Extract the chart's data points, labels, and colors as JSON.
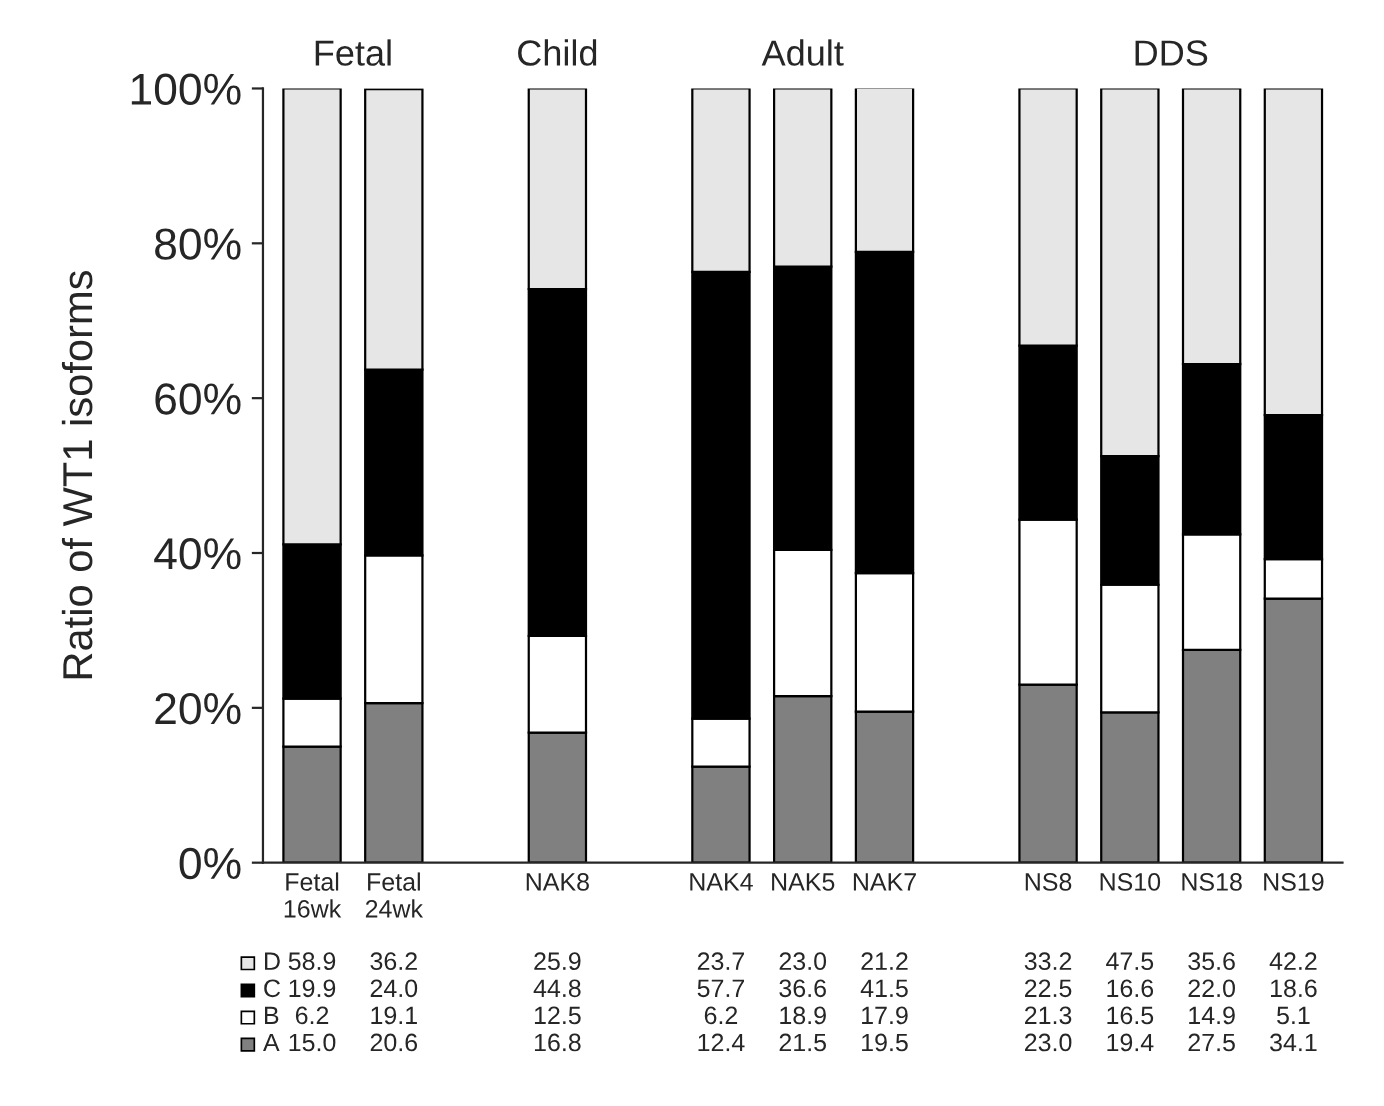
{
  "chart_data": {
    "type": "bar",
    "stacked": true,
    "ylabel": "Ratio of WT1 isoforms",
    "categories": [
      "Fetal\n16wk",
      "Fetal\n24wk",
      null,
      "NAK8",
      null,
      "NAK4",
      "NAK5",
      "NAK7",
      null,
      "NS8",
      "NS10",
      "NS18",
      "NS19"
    ],
    "series": [
      {
        "name": "A",
        "color": "#808080",
        "values": [
          15.0,
          20.6,
          null,
          16.8,
          null,
          12.4,
          21.5,
          19.5,
          null,
          23.0,
          19.4,
          27.5,
          34.1
        ],
        "value_labels": [
          "15.0",
          "20.6",
          null,
          "16.8",
          null,
          "12.4",
          "21.5",
          "19.5",
          null,
          "23.0",
          "19.4",
          "27.5",
          "34.1"
        ]
      },
      {
        "name": "B",
        "color": "#ffffff",
        "values": [
          6.2,
          19.1,
          null,
          12.5,
          null,
          6.2,
          18.9,
          17.9,
          null,
          21.3,
          16.5,
          14.9,
          5.1
        ],
        "value_labels": [
          "6.2",
          "19.1",
          null,
          "12.5",
          null,
          "6.2",
          "18.9",
          "17.9",
          null,
          "21.3",
          "16.5",
          "14.9",
          "5.1"
        ]
      },
      {
        "name": "C",
        "color": "#000000",
        "values": [
          19.9,
          24.0,
          null,
          44.8,
          null,
          57.7,
          36.6,
          41.5,
          null,
          22.5,
          16.6,
          22.0,
          18.6
        ],
        "value_labels": [
          "19.9",
          "24.0",
          null,
          "44.8",
          null,
          "57.7",
          "36.6",
          "41.5",
          null,
          "22.5",
          "16.6",
          "22.0",
          "18.6"
        ]
      },
      {
        "name": "D",
        "color": "#e6e6e6",
        "values": [
          58.9,
          36.2,
          null,
          25.9,
          null,
          23.7,
          23.0,
          21.2,
          null,
          33.2,
          47.5,
          35.6,
          42.2
        ],
        "value_labels": [
          "58.9",
          "36.2",
          null,
          "25.9",
          null,
          "23.7",
          "23.0",
          "21.2",
          null,
          "33.2",
          "47.5",
          "35.6",
          "42.2"
        ]
      }
    ],
    "ylim": [
      0,
      100
    ],
    "yticks": [
      {
        "value": 0,
        "label": "0%"
      },
      {
        "value": 20,
        "label": "20%"
      },
      {
        "value": 40,
        "label": "40%"
      },
      {
        "value": 60,
        "label": "60%"
      },
      {
        "value": 80,
        "label": "80%"
      },
      {
        "value": 100,
        "label": "100%"
      }
    ],
    "annotations": [
      "Fetal",
      "Child",
      "Adult",
      "DDS"
    ],
    "legend": "bottom left",
    "grid": false
  }
}
